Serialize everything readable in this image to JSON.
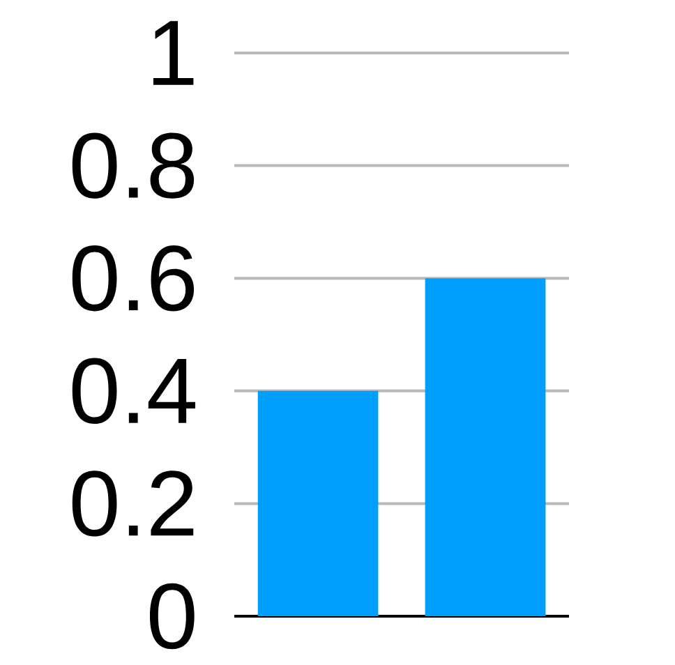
{
  "chart_data": {
    "type": "bar",
    "categories": [
      null,
      null
    ],
    "values": [
      0.4,
      0.6
    ],
    "color": "#009ffd",
    "ylim": [
      0,
      1
    ],
    "yticks": [
      0,
      0.2,
      0.4,
      0.6,
      0.8,
      1
    ],
    "grid": "y"
  }
}
